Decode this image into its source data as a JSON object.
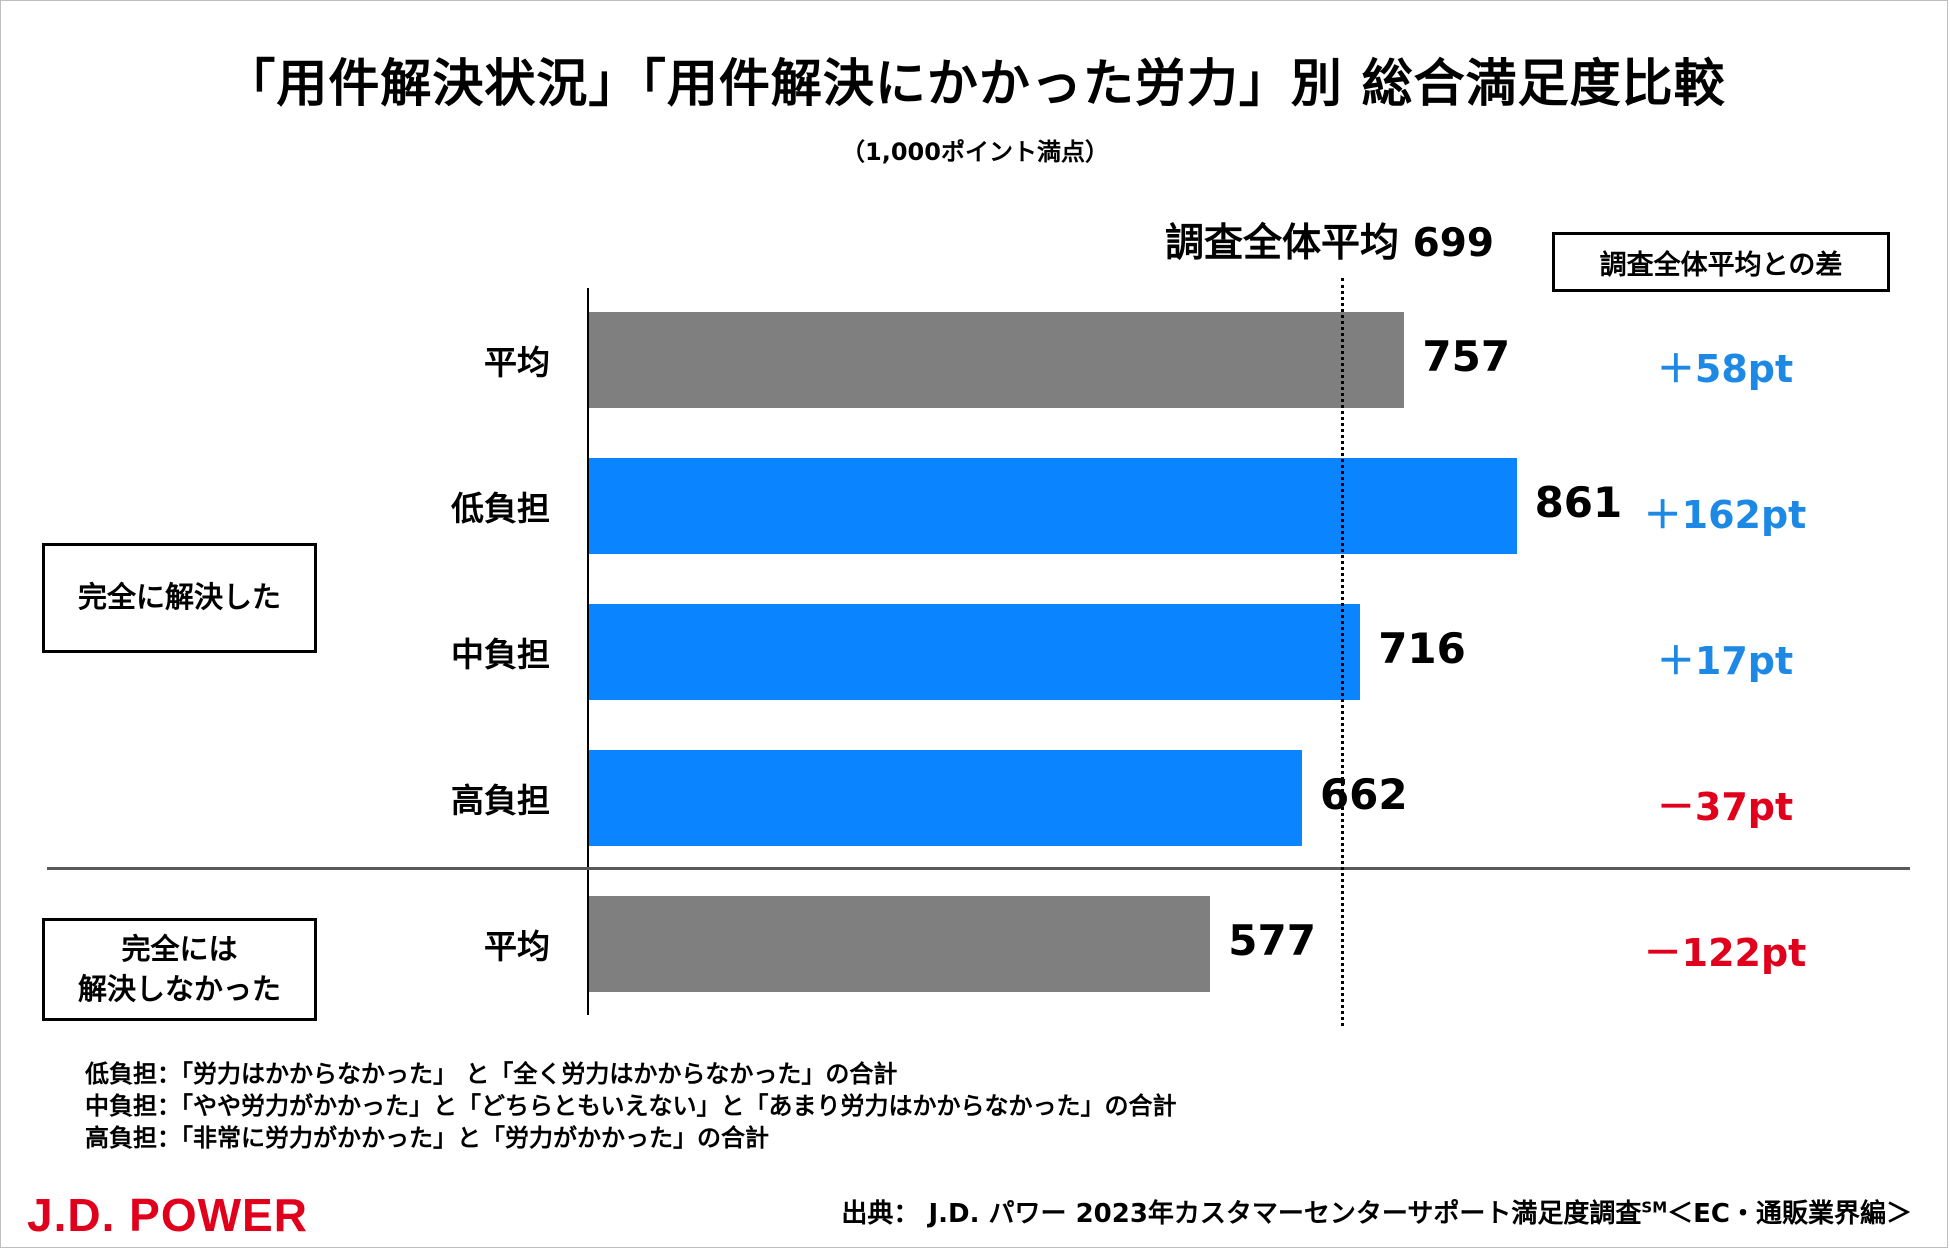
{
  "title": "「用件解決状況」「用件解決にかかった労力」別 総合満足度比較",
  "subtitle": "（1,000ポイント満点）",
  "avg_label": "調査全体平均 699",
  "diff_header": "調査全体平均との差",
  "groups": [
    "完全に解決した",
    "完全には\n解決しなかった"
  ],
  "colors": {
    "gray_bar": "#7f7f7f",
    "blue_bar": "#0a85ff",
    "positive": "#1e88e5",
    "negative": "#e0001b",
    "logo": "#e0001b"
  },
  "chart_data": {
    "type": "bar",
    "orientation": "horizontal",
    "categories": [
      "平均",
      "低負担",
      "中負担",
      "高負担",
      "平均"
    ],
    "values": [
      757,
      861,
      716,
      662,
      577
    ],
    "value_labels": [
      "757",
      "861",
      "716",
      "662",
      "577"
    ],
    "groups": [
      "完全に解決した",
      "完全に解決した",
      "完全に解決した",
      "完全に解決した",
      "完全には解決しなかった"
    ],
    "bar_colors": [
      "#7f7f7f",
      "#0a85ff",
      "#0a85ff",
      "#0a85ff",
      "#7f7f7f"
    ],
    "differences": [
      "＋58pt",
      "＋162pt",
      "＋17pt",
      "－37pt",
      "－122pt"
    ],
    "difference_signs": [
      "positive",
      "positive",
      "positive",
      "negative",
      "negative"
    ],
    "reference_line": {
      "label": "調査全体平均 699",
      "value": 699,
      "style": "dotted"
    },
    "xlim": [
      0,
      1000
    ],
    "grid": false
  },
  "notes": [
    "低負担：「労力はかからなかった」 と「全く労力はかからなかった」の合計",
    "中負担：「やや労力がかかった」と「どちらともいえない」と「あまり労力はかからなかった」の合計",
    "高負担：「非常に労力がかかった」と「労力がかかった」の合計"
  ],
  "logo_text": "J.D. POWER",
  "source": {
    "text": "出典： J.D. パワー 2023年カスタマーセンターサポート満足度調査",
    "sup": "SM",
    "suffix": "＜EC・通販業界編＞"
  }
}
